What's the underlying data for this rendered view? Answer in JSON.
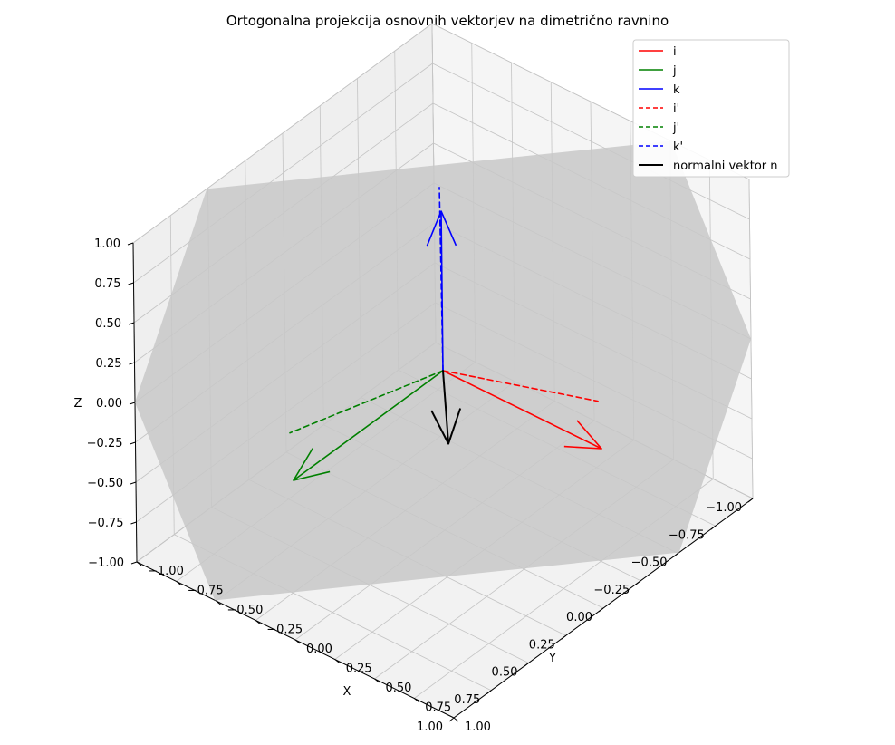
{
  "chart_data": {
    "type": "line",
    "projection": "3d",
    "title": "Ortogonalna projekcija osnovnih vektorjev na dimetrično ravnino",
    "xlabel": "X",
    "ylabel": "Y",
    "zlabel": "Z",
    "xlim": [
      -1,
      1
    ],
    "ylim": [
      -1,
      1
    ],
    "zlim": [
      -1,
      1
    ],
    "x_ticks": [
      "−1.00",
      "−0.75",
      "−0.50",
      "−0.25",
      "0.00",
      "0.25",
      "0.50",
      "0.75",
      "1.00"
    ],
    "y_ticks": [
      "−1.00",
      "−0.75",
      "−0.50",
      "−0.25",
      "0.00",
      "0.25",
      "0.50",
      "0.75",
      "1.00"
    ],
    "z_ticks": [
      "−1.00",
      "−0.75",
      "−0.50",
      "−0.25",
      "0.00",
      "0.25",
      "0.50",
      "0.75",
      "1.00"
    ],
    "grid": true,
    "legend_position": "top-right",
    "plane": {
      "normal": [
        0.67,
        0.67,
        0.33
      ],
      "color": "#c8c8c8"
    },
    "series": [
      {
        "name": "i",
        "color": "#ff0000",
        "linestyle": "solid",
        "origin": [
          0,
          0,
          0
        ],
        "vector": [
          1,
          0,
          0
        ],
        "arrow": true
      },
      {
        "name": "j",
        "color": "#008000",
        "linestyle": "solid",
        "origin": [
          0,
          0,
          0
        ],
        "vector": [
          0,
          1,
          0
        ],
        "arrow": true
      },
      {
        "name": "k",
        "color": "#0000ff",
        "linestyle": "solid",
        "origin": [
          0,
          0,
          0
        ],
        "vector": [
          0,
          0,
          1
        ],
        "arrow": true
      },
      {
        "name": "i'",
        "color": "#ff0000",
        "linestyle": "dashed",
        "origin": [
          0,
          0,
          0
        ],
        "vector": [
          0.56,
          -0.44,
          -0.22
        ],
        "arrow": false
      },
      {
        "name": "j'",
        "color": "#008000",
        "linestyle": "dashed",
        "origin": [
          0,
          0,
          0
        ],
        "vector": [
          -0.44,
          0.56,
          -0.22
        ],
        "arrow": false
      },
      {
        "name": "k'",
        "color": "#0000ff",
        "linestyle": "dashed",
        "origin": [
          0,
          0,
          0
        ],
        "vector": [
          -0.22,
          -0.22,
          0.89
        ],
        "arrow": false
      },
      {
        "name": "normalni vektor n",
        "color": "#000000",
        "linestyle": "solid",
        "linewidth": 2,
        "origin": [
          0,
          0,
          0
        ],
        "vector": [
          0.67,
          0.67,
          0.33
        ],
        "arrow": true
      }
    ]
  }
}
